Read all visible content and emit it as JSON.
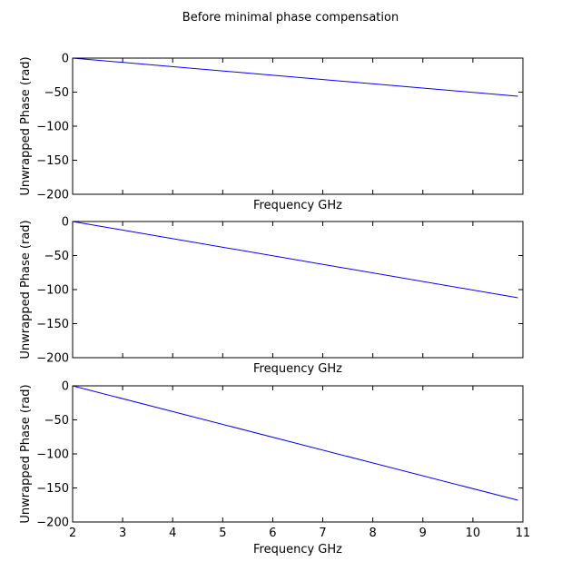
{
  "figure": {
    "suptitle": "Before minimal phase compensation"
  },
  "chart_data": [
    {
      "type": "line",
      "title": "",
      "xlabel": "Frequency GHz",
      "ylabel": "Unwrapped Phase (rad)",
      "xlim": [
        2,
        11
      ],
      "ylim": [
        -200,
        0
      ],
      "yticks": [
        0,
        -50,
        -100,
        -150,
        -200
      ],
      "xticks": [],
      "series": [
        {
          "color": "#0000ff",
          "x": [
            2.0,
            10.9
          ],
          "y": [
            0,
            -56
          ]
        }
      ]
    },
    {
      "type": "line",
      "title": "",
      "xlabel": "Frequency GHz",
      "ylabel": "Unwrapped Phase (rad)",
      "xlim": [
        2,
        11
      ],
      "ylim": [
        -200,
        0
      ],
      "yticks": [
        0,
        -50,
        -100,
        -150,
        -200
      ],
      "xticks": [],
      "series": [
        {
          "color": "#0000ff",
          "x": [
            2.0,
            10.9
          ],
          "y": [
            0,
            -112
          ]
        }
      ]
    },
    {
      "type": "line",
      "title": "",
      "xlabel": "Frequency GHz",
      "ylabel": "Unwrapped Phase (rad)",
      "xlim": [
        2,
        11
      ],
      "ylim": [
        -200,
        0
      ],
      "yticks": [
        0,
        -50,
        -100,
        -150,
        -200
      ],
      "xticks": [
        2,
        3,
        4,
        5,
        6,
        7,
        8,
        9,
        10,
        11
      ],
      "series": [
        {
          "color": "#0000ff",
          "x": [
            2.0,
            10.9
          ],
          "y": [
            0,
            -168
          ]
        }
      ]
    }
  ]
}
